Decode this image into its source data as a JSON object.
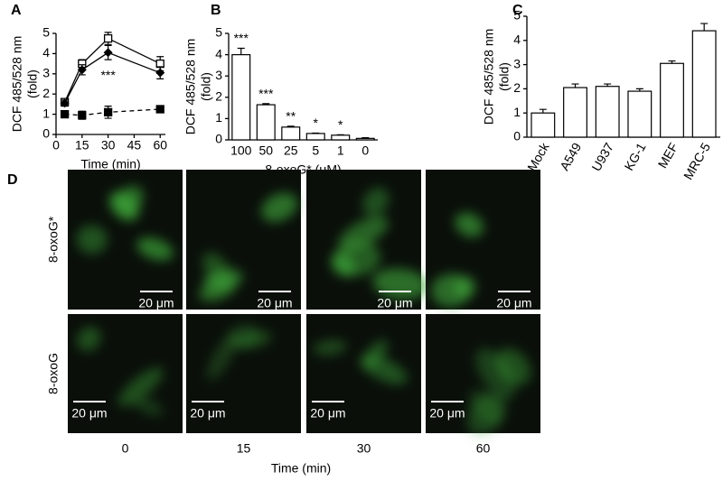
{
  "chart_data": [
    {
      "type": "line",
      "panel": "A",
      "xlabel": "Time (min)",
      "ylabel": [
        "DCF 485/528 nm",
        "(fold)"
      ],
      "x": [
        5,
        15,
        30,
        60
      ],
      "xlim": [
        0,
        63
      ],
      "xticks": [
        0,
        15,
        30,
        45,
        60
      ],
      "ylim": [
        0,
        5
      ],
      "yticks": [
        0,
        1,
        2,
        3,
        4,
        5
      ],
      "annotation": "***",
      "series": [
        {
          "color": "#000000",
          "marker": "square-open",
          "dash": false,
          "values": [
            1.6,
            3.5,
            4.75,
            3.5
          ],
          "errors": [
            0.15,
            0.2,
            0.3,
            0.35
          ]
        },
        {
          "color": "#000000",
          "marker": "diamond",
          "dash": false,
          "values": [
            1.55,
            3.2,
            4.05,
            3.05
          ],
          "errors": [
            0.15,
            0.25,
            0.35,
            0.3
          ]
        },
        {
          "color": "#000000",
          "marker": "square",
          "dash": true,
          "values": [
            1.0,
            0.95,
            1.1,
            1.25
          ],
          "errors": [
            0.15,
            0.2,
            0.3,
            0.1
          ]
        }
      ]
    },
    {
      "type": "bar",
      "panel": "B",
      "xlabel": "8-oxoG* (μM)",
      "ylabel": [
        "DCF 485/528 nm",
        "(fold)"
      ],
      "categories": [
        "100",
        "50",
        "25",
        "5",
        "1",
        "0"
      ],
      "values": [
        4.0,
        1.65,
        0.6,
        0.3,
        0.22,
        0.07
      ],
      "errors": [
        0.3,
        0.05,
        0.04,
        0.02,
        0.02,
        0.03
      ],
      "annotations": [
        "***",
        "***",
        "**",
        "*",
        "*",
        null
      ],
      "color": "#ffffff",
      "ylim": [
        0,
        5
      ],
      "yticks": [
        0,
        1,
        2,
        3,
        4,
        5
      ]
    },
    {
      "type": "bar",
      "panel": "C",
      "ylabel": [
        "DCF 485/528 nm",
        "(fold)"
      ],
      "categories": [
        "Mock",
        "A549",
        "U937",
        "KG-1",
        "MEF",
        "MRC-5"
      ],
      "values": [
        1.0,
        2.05,
        2.1,
        1.9,
        3.05,
        4.4
      ],
      "errors": [
        0.15,
        0.15,
        0.1,
        0.1,
        0.1,
        0.3
      ],
      "color": "#ffffff",
      "ylim": [
        0,
        5
      ],
      "yticks": [
        0,
        1,
        2,
        3,
        4,
        5
      ]
    }
  ],
  "panel_d": {
    "label": "D",
    "rows": [
      "8-oxoG*",
      "8-oxoG"
    ],
    "columns": [
      "0",
      "15",
      "30",
      "60"
    ],
    "scale_bar": "20 μm",
    "xlabel": "Time (min)"
  }
}
